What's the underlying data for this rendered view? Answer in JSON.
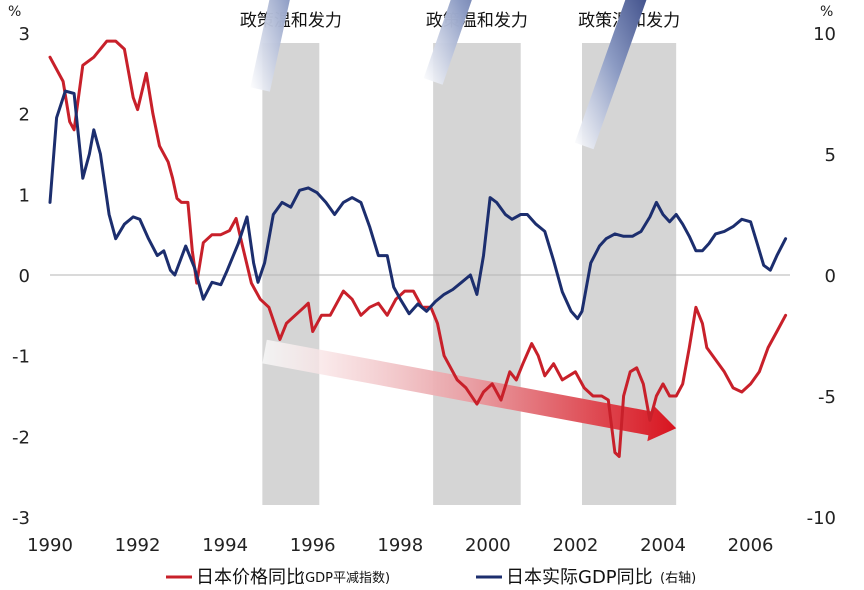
{
  "chart_data": {
    "type": "line",
    "title": "",
    "left_unit": "%",
    "right_unit": "%",
    "x_ticks": [
      "1990",
      "1992",
      "1994",
      "1996",
      "1998",
      "2000",
      "2002",
      "2004",
      "2006"
    ],
    "y_left_ticks": [
      "3",
      "2",
      "1",
      "0",
      "-1",
      "-2",
      "-3"
    ],
    "y_right_ticks": [
      "10",
      "5",
      "0",
      "-5",
      "-10"
    ],
    "y_left_range": [
      -3,
      3
    ],
    "y_right_range": [
      -10,
      10
    ],
    "x_range": [
      1990,
      2006.9
    ],
    "shaded_periods": [
      {
        "label": "政策温和发力",
        "start": 1994.85,
        "end": 1996.15
      },
      {
        "label": "政策温和发力",
        "start": 1998.75,
        "end": 2000.75
      },
      {
        "label": "政策温和发力",
        "start": 2002.15,
        "end": 2004.3
      }
    ],
    "arrows": [
      {
        "kind": "up",
        "from": [
          1994.8,
          2.3
        ],
        "to": [
          1996.0,
          5.3
        ]
      },
      {
        "kind": "up",
        "from": [
          1998.75,
          2.4
        ],
        "to": [
          2000.15,
          4.6
        ]
      },
      {
        "kind": "up",
        "from": [
          2002.2,
          1.6
        ],
        "to": [
          2003.7,
          3.9
        ]
      },
      {
        "kind": "down",
        "from": [
          1994.9,
          -0.95
        ],
        "to": [
          2004.3,
          -1.9
        ]
      }
    ],
    "series": [
      {
        "name": "日本价格同比",
        "note": "(GDP平减指数)",
        "axis": "left",
        "color": "#C8202A",
        "points": [
          [
            1990,
            2.7
          ],
          [
            1990.3,
            2.4
          ],
          [
            1990.45,
            1.9
          ],
          [
            1990.55,
            1.8
          ],
          [
            1990.75,
            2.6
          ],
          [
            1991,
            2.7
          ],
          [
            1991.3,
            2.9
          ],
          [
            1991.5,
            2.9
          ],
          [
            1991.7,
            2.8
          ],
          [
            1991.9,
            2.2
          ],
          [
            1992.0,
            2.05
          ],
          [
            1992.2,
            2.5
          ],
          [
            1992.35,
            2.0
          ],
          [
            1992.5,
            1.6
          ],
          [
            1992.7,
            1.4
          ],
          [
            1992.8,
            1.2
          ],
          [
            1992.9,
            0.95
          ],
          [
            1993.0,
            0.9
          ],
          [
            1993.15,
            0.9
          ],
          [
            1993.25,
            0.3
          ],
          [
            1993.35,
            -0.1
          ],
          [
            1993.5,
            0.4
          ],
          [
            1993.7,
            0.5
          ],
          [
            1993.9,
            0.5
          ],
          [
            1994.1,
            0.55
          ],
          [
            1994.25,
            0.7
          ],
          [
            1994.4,
            0.35
          ],
          [
            1994.6,
            -0.1
          ],
          [
            1994.8,
            -0.3
          ],
          [
            1995.0,
            -0.4
          ],
          [
            1995.25,
            -0.8
          ],
          [
            1995.4,
            -0.6
          ],
          [
            1995.6,
            -0.5
          ],
          [
            1995.8,
            -0.4
          ],
          [
            1995.9,
            -0.35
          ],
          [
            1996.0,
            -0.7
          ],
          [
            1996.2,
            -0.5
          ],
          [
            1996.4,
            -0.5
          ],
          [
            1996.55,
            -0.35
          ],
          [
            1996.7,
            -0.2
          ],
          [
            1996.9,
            -0.3
          ],
          [
            1997.1,
            -0.5
          ],
          [
            1997.3,
            -0.4
          ],
          [
            1997.5,
            -0.35
          ],
          [
            1997.7,
            -0.5
          ],
          [
            1997.9,
            -0.3
          ],
          [
            1998.1,
            -0.2
          ],
          [
            1998.3,
            -0.2
          ],
          [
            1998.5,
            -0.4
          ],
          [
            1998.7,
            -0.4
          ],
          [
            1998.85,
            -0.6
          ],
          [
            1999.0,
            -1.0
          ],
          [
            1999.3,
            -1.3
          ],
          [
            1999.5,
            -1.4
          ],
          [
            1999.75,
            -1.6
          ],
          [
            1999.9,
            -1.45
          ],
          [
            2000.1,
            -1.35
          ],
          [
            2000.3,
            -1.55
          ],
          [
            2000.5,
            -1.2
          ],
          [
            2000.65,
            -1.3
          ],
          [
            2000.8,
            -1.1
          ],
          [
            2001.0,
            -0.85
          ],
          [
            2001.15,
            -1.0
          ],
          [
            2001.3,
            -1.25
          ],
          [
            2001.5,
            -1.1
          ],
          [
            2001.7,
            -1.3
          ],
          [
            2002.0,
            -1.2
          ],
          [
            2002.2,
            -1.4
          ],
          [
            2002.4,
            -1.5
          ],
          [
            2002.6,
            -1.5
          ],
          [
            2002.75,
            -1.55
          ],
          [
            2002.9,
            -2.2
          ],
          [
            2003.0,
            -2.25
          ],
          [
            2003.1,
            -1.5
          ],
          [
            2003.25,
            -1.2
          ],
          [
            2003.4,
            -1.15
          ],
          [
            2003.55,
            -1.35
          ],
          [
            2003.7,
            -1.8
          ],
          [
            2003.85,
            -1.5
          ],
          [
            2004.0,
            -1.35
          ],
          [
            2004.15,
            -1.5
          ],
          [
            2004.3,
            -1.5
          ],
          [
            2004.45,
            -1.35
          ],
          [
            2004.6,
            -0.9
          ],
          [
            2004.75,
            -0.4
          ],
          [
            2004.9,
            -0.6
          ],
          [
            2005.0,
            -0.9
          ],
          [
            2005.2,
            -1.05
          ],
          [
            2005.4,
            -1.2
          ],
          [
            2005.6,
            -1.4
          ],
          [
            2005.8,
            -1.45
          ],
          [
            2006.0,
            -1.35
          ],
          [
            2006.2,
            -1.2
          ],
          [
            2006.4,
            -0.9
          ],
          [
            2006.6,
            -0.7
          ],
          [
            2006.8,
            -0.5
          ]
        ]
      },
      {
        "name": "日本实际GDP同比",
        "note": "(右轴)",
        "axis": "right",
        "color": "#1C2E6E",
        "points": [
          [
            1990,
            3.0
          ],
          [
            1990.15,
            6.5
          ],
          [
            1990.35,
            7.6
          ],
          [
            1990.55,
            7.5
          ],
          [
            1990.75,
            4.0
          ],
          [
            1990.9,
            5.0
          ],
          [
            1991.0,
            6.0
          ],
          [
            1991.15,
            5.0
          ],
          [
            1991.35,
            2.5
          ],
          [
            1991.5,
            1.5
          ],
          [
            1991.7,
            2.1
          ],
          [
            1991.9,
            2.4
          ],
          [
            1992.05,
            2.3
          ],
          [
            1992.25,
            1.5
          ],
          [
            1992.45,
            0.8
          ],
          [
            1992.6,
            1.0
          ],
          [
            1992.75,
            0.2
          ],
          [
            1992.85,
            0.0
          ],
          [
            1993.1,
            1.2
          ],
          [
            1993.3,
            0.3
          ],
          [
            1993.5,
            -1.0
          ],
          [
            1993.7,
            -0.3
          ],
          [
            1993.9,
            -0.4
          ],
          [
            1994.05,
            0.2
          ],
          [
            1994.3,
            1.3
          ],
          [
            1994.5,
            2.4
          ],
          [
            1994.65,
            0.5
          ],
          [
            1994.75,
            -0.3
          ],
          [
            1994.9,
            0.5
          ],
          [
            1995.1,
            2.5
          ],
          [
            1995.3,
            3.0
          ],
          [
            1995.5,
            2.8
          ],
          [
            1995.7,
            3.5
          ],
          [
            1995.9,
            3.6
          ],
          [
            1996.1,
            3.4
          ],
          [
            1996.3,
            3.0
          ],
          [
            1996.5,
            2.5
          ],
          [
            1996.7,
            3.0
          ],
          [
            1996.9,
            3.2
          ],
          [
            1997.1,
            3.0
          ],
          [
            1997.3,
            2.0
          ],
          [
            1997.5,
            0.8
          ],
          [
            1997.7,
            0.8
          ],
          [
            1997.85,
            -0.5
          ],
          [
            1998.0,
            -1.0
          ],
          [
            1998.2,
            -1.6
          ],
          [
            1998.4,
            -1.2
          ],
          [
            1998.6,
            -1.5
          ],
          [
            1998.8,
            -1.1
          ],
          [
            1999.0,
            -0.8
          ],
          [
            1999.2,
            -0.6
          ],
          [
            1999.4,
            -0.3
          ],
          [
            1999.6,
            0.0
          ],
          [
            1999.75,
            -0.8
          ],
          [
            1999.9,
            0.8
          ],
          [
            2000.05,
            3.2
          ],
          [
            2000.2,
            3.0
          ],
          [
            2000.4,
            2.5
          ],
          [
            2000.55,
            2.3
          ],
          [
            2000.75,
            2.5
          ],
          [
            2000.9,
            2.5
          ],
          [
            2001.1,
            2.1
          ],
          [
            2001.3,
            1.8
          ],
          [
            2001.5,
            0.6
          ],
          [
            2001.7,
            -0.7
          ],
          [
            2001.9,
            -1.5
          ],
          [
            2002.05,
            -1.8
          ],
          [
            2002.15,
            -1.5
          ],
          [
            2002.35,
            0.5
          ],
          [
            2002.55,
            1.2
          ],
          [
            2002.7,
            1.5
          ],
          [
            2002.9,
            1.7
          ],
          [
            2003.1,
            1.6
          ],
          [
            2003.3,
            1.6
          ],
          [
            2003.5,
            1.8
          ],
          [
            2003.7,
            2.4
          ],
          [
            2003.85,
            3.0
          ],
          [
            2004.0,
            2.5
          ],
          [
            2004.15,
            2.2
          ],
          [
            2004.3,
            2.5
          ],
          [
            2004.45,
            2.1
          ],
          [
            2004.6,
            1.6
          ],
          [
            2004.75,
            1.0
          ],
          [
            2004.9,
            1.0
          ],
          [
            2005.05,
            1.3
          ],
          [
            2005.2,
            1.7
          ],
          [
            2005.4,
            1.8
          ],
          [
            2005.6,
            2.0
          ],
          [
            2005.8,
            2.3
          ],
          [
            2006.0,
            2.2
          ],
          [
            2006.15,
            1.3
          ],
          [
            2006.3,
            0.4
          ],
          [
            2006.45,
            0.2
          ],
          [
            2006.6,
            0.8
          ],
          [
            2006.8,
            1.5
          ]
        ]
      }
    ]
  }
}
